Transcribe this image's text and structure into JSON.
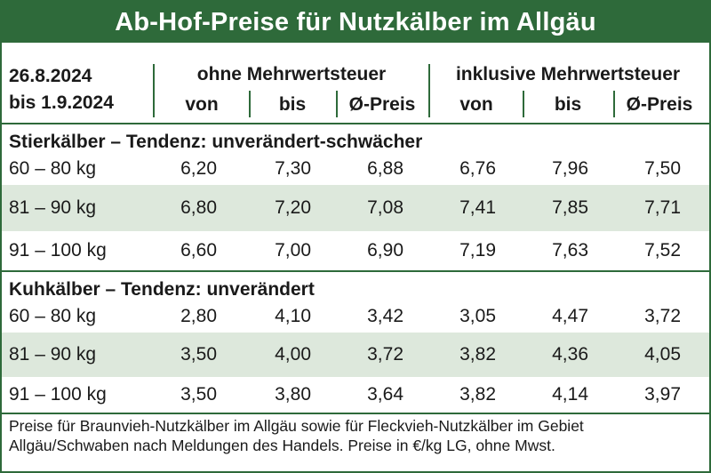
{
  "title": "Ab-Hof-Preise für Nutzkälber im Allgäu",
  "header": {
    "date_from": "26.8.2024",
    "date_to": "bis 1.9.2024",
    "group_excl": "ohne Mehrwertsteuer",
    "group_incl": "inklusive Mehrwertsteuer",
    "col_von": "von",
    "col_bis": "bis",
    "col_avg": "Ø-Preis"
  },
  "sections": [
    {
      "title": "Stierkälber – Tendenz: unverändert-schwächer",
      "rows": [
        {
          "weight": "60 – 80 kg",
          "values": [
            "6,20",
            "7,30",
            "6,88",
            "6,76",
            "7,96",
            "7,50"
          ]
        },
        {
          "weight": "81 – 90 kg",
          "values": [
            "6,80",
            "7,20",
            "7,08",
            "7,41",
            "7,85",
            "7,71"
          ]
        },
        {
          "weight": "91 – 100 kg",
          "values": [
            "6,60",
            "7,00",
            "6,90",
            "7,19",
            "7,63",
            "7,52"
          ]
        }
      ]
    },
    {
      "title": "Kuhkälber – Tendenz: unverändert",
      "rows": [
        {
          "weight": "60 – 80 kg",
          "values": [
            "2,80",
            "4,10",
            "3,42",
            "3,05",
            "4,47",
            "3,72"
          ]
        },
        {
          "weight": "81 – 90 kg",
          "values": [
            "3,50",
            "4,00",
            "3,72",
            "3,82",
            "4,36",
            "4,05"
          ]
        },
        {
          "weight": "91 – 100 kg",
          "values": [
            "3,50",
            "3,80",
            "3,64",
            "3,82",
            "4,14",
            "3,97"
          ]
        }
      ]
    }
  ],
  "footnote": "Preise für Braunvieh-Nutzkälber im Allgäu sowie für Fleckvieh-Nutzkälber im Gebiet Allgäu/Schwaben nach Meldungen des Handels. Preise in €/kg LG, ohne Mwst.",
  "colors": {
    "accent": "#2e6a3a",
    "row_shade": "#dde8dc"
  }
}
